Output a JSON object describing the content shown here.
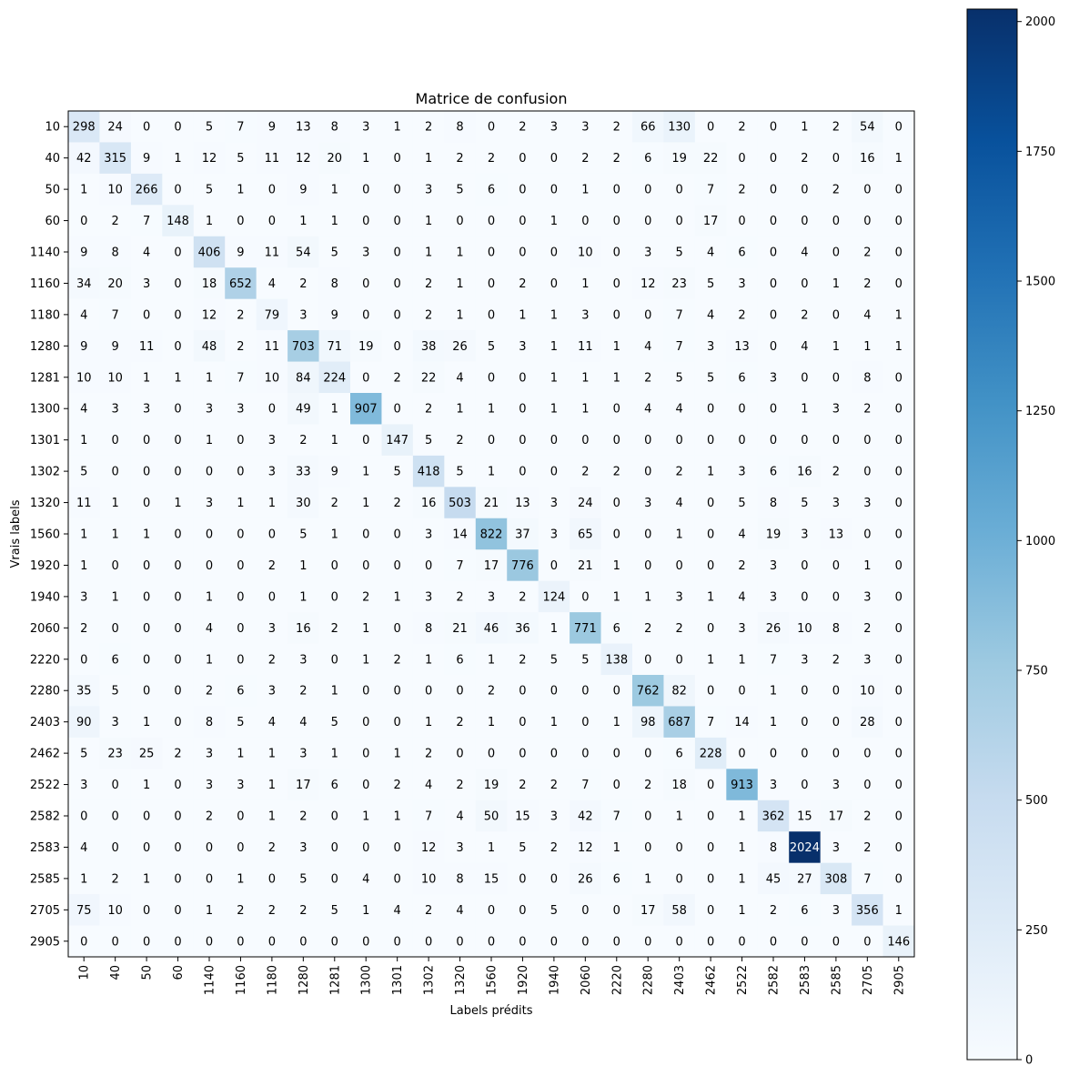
{
  "chart_data": {
    "type": "heatmap",
    "title": "Matrice de confusion",
    "xlabel": "Labels prédits",
    "ylabel": "Vrais labels",
    "labels": [
      "10",
      "40",
      "50",
      "60",
      "1140",
      "1160",
      "1180",
      "1280",
      "1281",
      "1300",
      "1301",
      "1302",
      "1320",
      "1560",
      "1920",
      "1940",
      "2060",
      "2220",
      "2280",
      "2403",
      "2462",
      "2522",
      "2582",
      "2583",
      "2585",
      "2705",
      "2905"
    ],
    "matrix": [
      [
        298,
        24,
        0,
        0,
        5,
        7,
        9,
        13,
        8,
        3,
        1,
        2,
        8,
        0,
        2,
        3,
        3,
        2,
        66,
        130,
        0,
        2,
        0,
        1,
        2,
        54,
        0
      ],
      [
        42,
        315,
        9,
        1,
        12,
        5,
        11,
        12,
        20,
        1,
        0,
        1,
        2,
        2,
        0,
        0,
        2,
        2,
        6,
        19,
        22,
        0,
        0,
        2,
        0,
        16,
        1
      ],
      [
        1,
        10,
        266,
        0,
        5,
        1,
        0,
        9,
        1,
        0,
        0,
        3,
        5,
        6,
        0,
        0,
        1,
        0,
        0,
        0,
        7,
        2,
        0,
        0,
        2,
        0,
        0
      ],
      [
        0,
        2,
        7,
        148,
        1,
        0,
        0,
        1,
        1,
        0,
        0,
        1,
        0,
        0,
        0,
        1,
        0,
        0,
        0,
        0,
        17,
        0,
        0,
        0,
        0,
        0,
        0
      ],
      [
        9,
        8,
        4,
        0,
        406,
        9,
        11,
        54,
        5,
        3,
        0,
        1,
        1,
        0,
        0,
        0,
        10,
        0,
        3,
        5,
        4,
        6,
        0,
        4,
        0,
        2,
        0
      ],
      [
        34,
        20,
        3,
        0,
        18,
        652,
        4,
        2,
        8,
        0,
        0,
        2,
        1,
        0,
        2,
        0,
        1,
        0,
        12,
        23,
        5,
        3,
        0,
        0,
        1,
        2,
        0
      ],
      [
        4,
        7,
        0,
        0,
        12,
        2,
        79,
        3,
        9,
        0,
        0,
        2,
        1,
        0,
        1,
        1,
        3,
        0,
        0,
        7,
        4,
        2,
        0,
        2,
        0,
        4,
        1
      ],
      [
        9,
        9,
        11,
        0,
        48,
        2,
        11,
        703,
        71,
        19,
        0,
        38,
        26,
        5,
        3,
        1,
        11,
        1,
        4,
        7,
        3,
        13,
        0,
        4,
        1,
        1,
        1
      ],
      [
        10,
        10,
        1,
        1,
        1,
        7,
        10,
        84,
        224,
        0,
        2,
        22,
        4,
        0,
        0,
        1,
        1,
        1,
        2,
        5,
        5,
        6,
        3,
        0,
        0,
        8,
        0
      ],
      [
        4,
        3,
        3,
        0,
        3,
        3,
        0,
        49,
        1,
        907,
        0,
        2,
        1,
        1,
        0,
        1,
        1,
        0,
        4,
        4,
        0,
        0,
        0,
        1,
        3,
        2,
        0
      ],
      [
        1,
        0,
        0,
        0,
        1,
        0,
        3,
        2,
        1,
        0,
        147,
        5,
        2,
        0,
        0,
        0,
        0,
        0,
        0,
        0,
        0,
        0,
        0,
        0,
        0,
        0,
        0
      ],
      [
        5,
        0,
        0,
        0,
        0,
        0,
        3,
        33,
        9,
        1,
        5,
        418,
        5,
        1,
        0,
        0,
        2,
        2,
        0,
        2,
        1,
        3,
        6,
        16,
        2,
        0,
        0
      ],
      [
        11,
        1,
        0,
        1,
        3,
        1,
        1,
        30,
        2,
        1,
        2,
        16,
        503,
        21,
        13,
        3,
        24,
        0,
        3,
        4,
        0,
        5,
        8,
        5,
        3,
        3,
        0
      ],
      [
        1,
        1,
        1,
        0,
        0,
        0,
        0,
        5,
        1,
        0,
        0,
        3,
        14,
        822,
        37,
        3,
        65,
        0,
        0,
        1,
        0,
        4,
        19,
        3,
        13,
        0,
        0
      ],
      [
        1,
        0,
        0,
        0,
        0,
        0,
        2,
        1,
        0,
        0,
        0,
        0,
        7,
        17,
        776,
        0,
        21,
        1,
        0,
        0,
        0,
        2,
        3,
        0,
        0,
        1,
        0
      ],
      [
        3,
        1,
        0,
        0,
        1,
        0,
        0,
        1,
        0,
        2,
        1,
        3,
        2,
        3,
        2,
        124,
        0,
        1,
        1,
        3,
        1,
        4,
        3,
        0,
        0,
        3,
        0
      ],
      [
        2,
        0,
        0,
        0,
        4,
        0,
        3,
        16,
        2,
        1,
        0,
        8,
        21,
        46,
        36,
        1,
        771,
        6,
        2,
        2,
        0,
        3,
        26,
        10,
        8,
        2,
        0
      ],
      [
        0,
        6,
        0,
        0,
        1,
        0,
        2,
        3,
        0,
        1,
        2,
        1,
        6,
        1,
        2,
        5,
        5,
        138,
        0,
        0,
        1,
        1,
        7,
        3,
        2,
        3,
        0
      ],
      [
        35,
        5,
        0,
        0,
        2,
        6,
        3,
        2,
        1,
        0,
        0,
        0,
        0,
        2,
        0,
        0,
        0,
        0,
        762,
        82,
        0,
        0,
        1,
        0,
        0,
        10,
        0
      ],
      [
        90,
        3,
        1,
        0,
        8,
        5,
        4,
        4,
        5,
        0,
        0,
        1,
        2,
        1,
        0,
        1,
        0,
        1,
        98,
        687,
        7,
        14,
        1,
        0,
        0,
        28,
        0
      ],
      [
        5,
        23,
        25,
        2,
        3,
        1,
        1,
        3,
        1,
        0,
        1,
        2,
        0,
        0,
        0,
        0,
        0,
        0,
        0,
        6,
        228,
        0,
        0,
        0,
        0,
        0,
        0
      ],
      [
        3,
        0,
        1,
        0,
        3,
        3,
        1,
        17,
        6,
        0,
        2,
        4,
        2,
        19,
        2,
        2,
        7,
        0,
        2,
        18,
        0,
        913,
        3,
        0,
        3,
        0,
        0
      ],
      [
        0,
        0,
        0,
        0,
        2,
        0,
        1,
        2,
        0,
        1,
        1,
        7,
        4,
        50,
        15,
        3,
        42,
        7,
        0,
        1,
        0,
        1,
        362,
        15,
        17,
        2,
        0
      ],
      [
        4,
        0,
        0,
        0,
        0,
        0,
        2,
        3,
        0,
        0,
        0,
        12,
        3,
        1,
        5,
        2,
        12,
        1,
        0,
        0,
        0,
        1,
        8,
        2024,
        3,
        2,
        0
      ],
      [
        1,
        2,
        1,
        0,
        0,
        1,
        0,
        5,
        0,
        4,
        0,
        10,
        8,
        15,
        0,
        0,
        26,
        6,
        1,
        0,
        0,
        1,
        45,
        27,
        308,
        7,
        0
      ],
      [
        75,
        10,
        0,
        0,
        1,
        2,
        2,
        2,
        5,
        1,
        4,
        2,
        4,
        0,
        0,
        5,
        0,
        0,
        17,
        58,
        0,
        1,
        2,
        6,
        3,
        356,
        1
      ],
      [
        0,
        0,
        0,
        0,
        0,
        0,
        0,
        0,
        0,
        0,
        0,
        0,
        0,
        0,
        0,
        0,
        0,
        0,
        0,
        0,
        0,
        0,
        0,
        0,
        0,
        0,
        146
      ]
    ],
    "colormap": "Blues",
    "vmin": 0,
    "vmax": 2024,
    "colorbar_ticks": [
      0,
      250,
      500,
      750,
      1000,
      1250,
      1500,
      1750,
      2000
    ],
    "grid": false
  }
}
